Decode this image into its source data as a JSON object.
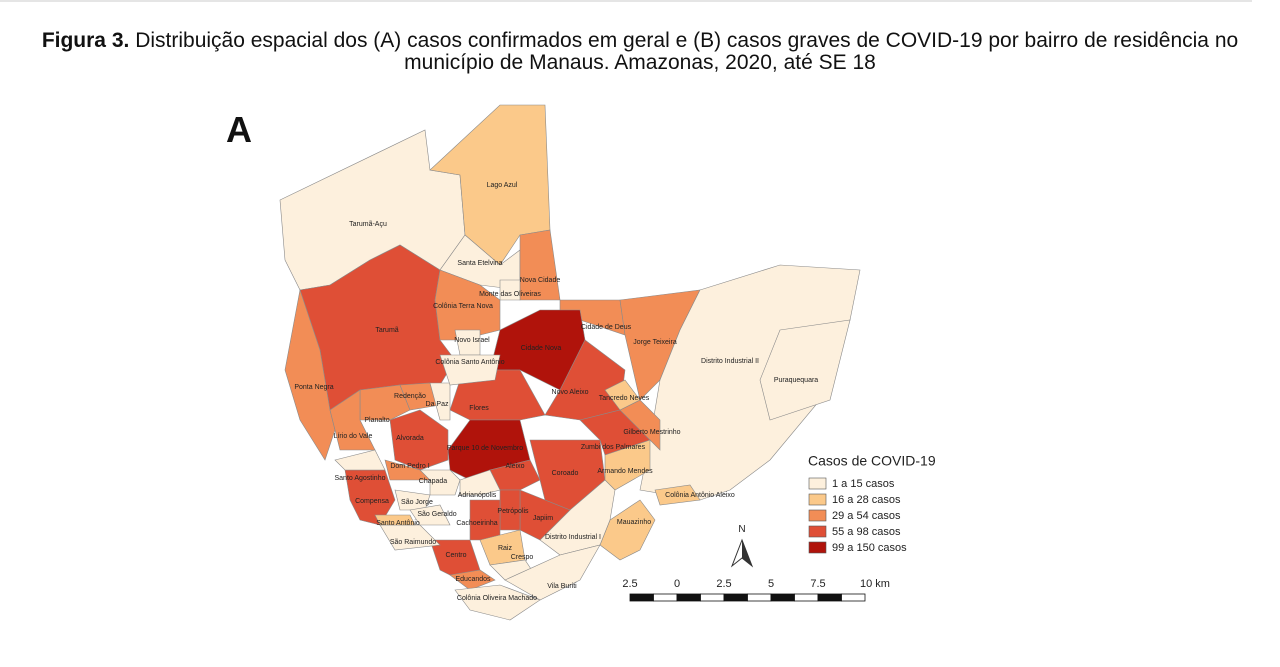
{
  "caption": {
    "label": "Figura 3.",
    "text": "Distribuição espacial dos (A) casos confirmados em geral e (B) casos graves de COVID-19 por bairro de residência no município de Manaus. Amazonas, 2020, até SE 18"
  },
  "panel": "A",
  "legend": {
    "title": "Casos de COVID-19",
    "items": [
      {
        "label": "1 a 15 casos",
        "color": "#fdf0dd"
      },
      {
        "label": "16 a 28 casos",
        "color": "#fbc98a"
      },
      {
        "label": "29 a 54 casos",
        "color": "#f28d56"
      },
      {
        "label": "55 a 98 casos",
        "color": "#df4f36"
      },
      {
        "label": "99 a 150 casos",
        "color": "#b0130b"
      }
    ]
  },
  "north": "N",
  "scale": [
    "2.5",
    "0",
    "2.5",
    "5",
    "7.5",
    "10 km"
  ],
  "neighborhoods": [
    {
      "label": "Tarumã-Açu",
      "color": "#fdf0dd"
    },
    {
      "label": "Lago Azul",
      "color": "#fbc98a"
    },
    {
      "label": "Tarumã",
      "color": "#df4f36"
    },
    {
      "label": "Ponta Negra",
      "color": "#f28d56"
    },
    {
      "label": "Santa Etelvina",
      "color": "#fdf0dd"
    },
    {
      "label": "Nova Cidade",
      "color": "#f28d56"
    },
    {
      "label": "Colônia Terra Nova",
      "color": "#f28d56"
    },
    {
      "label": "Cidade de Deus",
      "color": "#f28d56"
    },
    {
      "label": "Cidade Nova",
      "color": "#b0130b"
    },
    {
      "label": "Jorge Teixeira",
      "color": "#f28d56"
    },
    {
      "label": "Distrito Industrial II",
      "color": "#fdf0dd"
    },
    {
      "label": "Novo Aleixo",
      "color": "#df4f36"
    },
    {
      "label": "Flores",
      "color": "#df4f36"
    },
    {
      "label": "Parque 10 de Novembro",
      "color": "#b0130b"
    },
    {
      "label": "Alvorada",
      "color": "#df4f36"
    },
    {
      "label": "Planalto",
      "color": "#f28d56"
    },
    {
      "label": "Redenção",
      "color": "#f28d56"
    },
    {
      "label": "Da Paz",
      "color": "#fdf0dd"
    },
    {
      "label": "Lírio do Vale",
      "color": "#f28d56"
    },
    {
      "label": "Aleixo",
      "color": "#df4f36"
    },
    {
      "label": "Coroado",
      "color": "#df4f36"
    },
    {
      "label": "Zumbi dos Palmares",
      "color": "#df4f36"
    },
    {
      "label": "Gilberto Mestrinho",
      "color": "#f28d56"
    },
    {
      "label": "Armando Mendes",
      "color": "#fbc98a"
    },
    {
      "label": "Tancredo Neves",
      "color": "#fbc98a"
    },
    {
      "label": "Colônia Antônio Aleixo",
      "color": "#fbc98a"
    },
    {
      "label": "Mauazinho",
      "color": "#fbc98a"
    },
    {
      "label": "Distrito Industrial I",
      "color": "#fdf0dd"
    },
    {
      "label": "Japiim",
      "color": "#df4f36"
    },
    {
      "label": "Petrópolis",
      "color": "#df4f36"
    },
    {
      "label": "Adrianópolis",
      "color": "#fdf0dd"
    },
    {
      "label": "Dom Pedro I",
      "color": "#f28d56"
    },
    {
      "label": "Chapada",
      "color": "#fdf0dd"
    },
    {
      "label": "Compensa",
      "color": "#df4f36"
    },
    {
      "label": "Santo Agostinho",
      "color": "#fdf0dd"
    },
    {
      "label": "São Jorge",
      "color": "#fdf0dd"
    },
    {
      "label": "Cachoeirinha",
      "color": "#df4f36"
    },
    {
      "label": "Centro",
      "color": "#df4f36"
    },
    {
      "label": "Raiz",
      "color": "#fbc98a"
    },
    {
      "label": "Crespo",
      "color": "#fdf0dd"
    },
    {
      "label": "Vila Buriti",
      "color": "#fdf0dd"
    },
    {
      "label": "Educandos",
      "color": "#f28d56"
    },
    {
      "label": "Colônia Oliveira Machado",
      "color": "#fdf0dd"
    },
    {
      "label": "São Raimundo",
      "color": "#fdf0dd"
    },
    {
      "label": "São Geraldo",
      "color": "#fdf0dd"
    },
    {
      "label": "Santo Antônio",
      "color": "#fbc98a"
    },
    {
      "label": "Novo Israel",
      "color": "#fdf0dd"
    },
    {
      "label": "Colônia Santo Antônio",
      "color": "#fdf0dd"
    },
    {
      "label": "Monte das Oliveiras",
      "color": "#fdf0dd"
    },
    {
      "label": "Puraquequara",
      "color": "#fdf0dd"
    }
  ]
}
